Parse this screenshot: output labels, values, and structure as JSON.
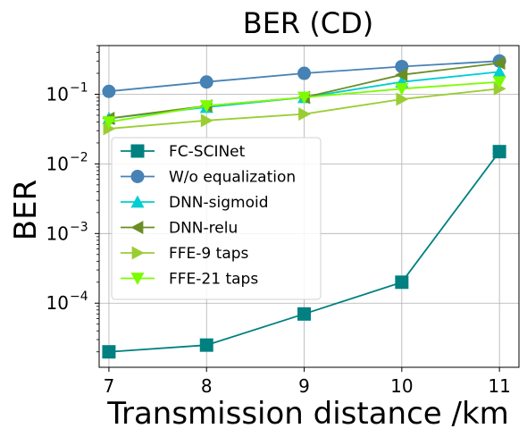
{
  "chart_data": {
    "type": "line",
    "title": "BER (CD)",
    "xlabel": "Transmission distance /km",
    "ylabel": "BER",
    "yscale": "log",
    "xlim": [
      6.9,
      11.2
    ],
    "ylim": [
      1.2e-05,
      0.5
    ],
    "x": [
      7,
      8,
      9,
      10,
      11
    ],
    "xticks": [
      7,
      8,
      9,
      10,
      11
    ],
    "xtick_labels": [
      "7",
      "8",
      "9",
      "10",
      "11"
    ],
    "yticks": [
      0.0001,
      0.001,
      0.01,
      0.1
    ],
    "ytick_bases": [
      "10",
      "10",
      "10",
      "10"
    ],
    "ytick_exponents": [
      "−4",
      "−3",
      "−2",
      "−1"
    ],
    "grid": true,
    "legend_position": "center-left",
    "series": [
      {
        "name": "FC-SCINet",
        "color": "#008080",
        "marker": "square",
        "values": [
          2e-05,
          2.5e-05,
          7e-05,
          0.0002,
          0.015
        ]
      },
      {
        "name": "W/o equalization",
        "color": "#4682b4",
        "marker": "circle",
        "values": [
          0.11,
          0.15,
          0.2,
          0.25,
          0.3
        ]
      },
      {
        "name": "DNN-sigmoid",
        "color": "#00ced1",
        "marker": "triangle-up",
        "values": [
          0.045,
          0.065,
          0.09,
          0.15,
          0.21
        ]
      },
      {
        "name": "DNN-relu",
        "color": "#6b8e23",
        "marker": "triangle-left",
        "values": [
          0.045,
          0.068,
          0.09,
          0.19,
          0.28
        ]
      },
      {
        "name": "FFE-9 taps",
        "color": "#9acd32",
        "marker": "triangle-right",
        "values": [
          0.032,
          0.042,
          0.052,
          0.085,
          0.12
        ]
      },
      {
        "name": "FFE-21 taps",
        "color": "#7cfc00",
        "marker": "triangle-down",
        "values": [
          0.04,
          0.068,
          0.09,
          0.12,
          0.15
        ]
      }
    ]
  }
}
